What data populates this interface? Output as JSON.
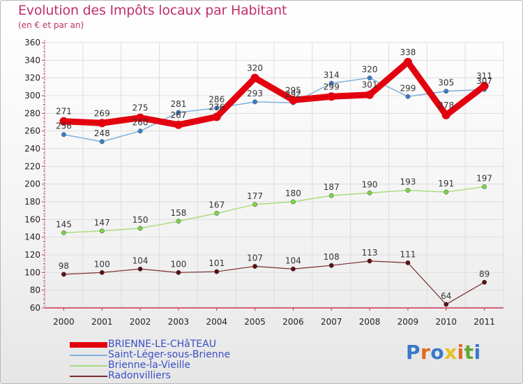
{
  "header": {
    "title": "Evolution des Impôts locaux par Habitant",
    "subtitle": "(en € et par an)"
  },
  "brand": {
    "text": "Proxiti",
    "letter_colors": [
      "#3a78c9",
      "#e06a1e",
      "#3a78c9",
      "#e8c020",
      "#e06a1e",
      "#60a830",
      "#3a78c9"
    ]
  },
  "colors": {
    "title": "#c0306a",
    "axis": "#cc3355",
    "grid": "#dddddd",
    "tick_text": "#222222",
    "legend_text": "#3a4fc4"
  },
  "chart_data": {
    "type": "line",
    "x": [
      "2000",
      "2001",
      "2002",
      "2003",
      "2004",
      "2005",
      "2006",
      "2007",
      "2008",
      "2009",
      "2010",
      "2011"
    ],
    "ylim": [
      60,
      360
    ],
    "yticks": [
      60,
      80,
      100,
      120,
      140,
      160,
      180,
      200,
      220,
      240,
      260,
      280,
      300,
      320,
      340,
      360
    ],
    "grid": true,
    "legend_position": "bottom-left",
    "series": [
      {
        "name": "BRIENNE-LE-CHâTEAU",
        "values": [
          271,
          269,
          275,
          267,
          276,
          320,
          295,
          299,
          301,
          338,
          278,
          311
        ],
        "labels": [
          "271",
          "269",
          "275",
          "267",
          "276",
          "320",
          "295",
          "299",
          "301",
          "338",
          "278",
          "311"
        ],
        "color": "#e3000f",
        "marker": "#e3000f",
        "width": 9
      },
      {
        "name": "Saint-Léger-sous-Brienne",
        "values": [
          256,
          248,
          260,
          281,
          286,
          293,
          292,
          314,
          320,
          299,
          305,
          307
        ],
        "labels": [
          "256",
          "248",
          "260",
          "281",
          "286",
          "293",
          "292",
          "314",
          "320",
          "299",
          "305",
          "307"
        ],
        "color": "#7fb0dc",
        "marker": "#3b7ecb",
        "width": 1.5
      },
      {
        "name": "Brienne-la-Vieille",
        "values": [
          145,
          147,
          150,
          158,
          167,
          177,
          180,
          187,
          190,
          193,
          191,
          197
        ],
        "labels": [
          "145",
          "147",
          "150",
          "158",
          "167",
          "177",
          "180",
          "187",
          "190",
          "193",
          "191",
          "197"
        ],
        "color": "#a9dd7d",
        "marker": "#7ed448",
        "width": 1.5
      },
      {
        "name": "Radonvilliers",
        "values": [
          98,
          100,
          104,
          100,
          101,
          107,
          104,
          108,
          113,
          111,
          64,
          89
        ],
        "labels": [
          "98",
          "100",
          "104",
          "100",
          "101",
          "107",
          "104",
          "108",
          "113",
          "111",
          "64",
          "89"
        ],
        "color": "#7a2a2a",
        "marker": "#5a1010",
        "width": 1.2
      }
    ]
  }
}
